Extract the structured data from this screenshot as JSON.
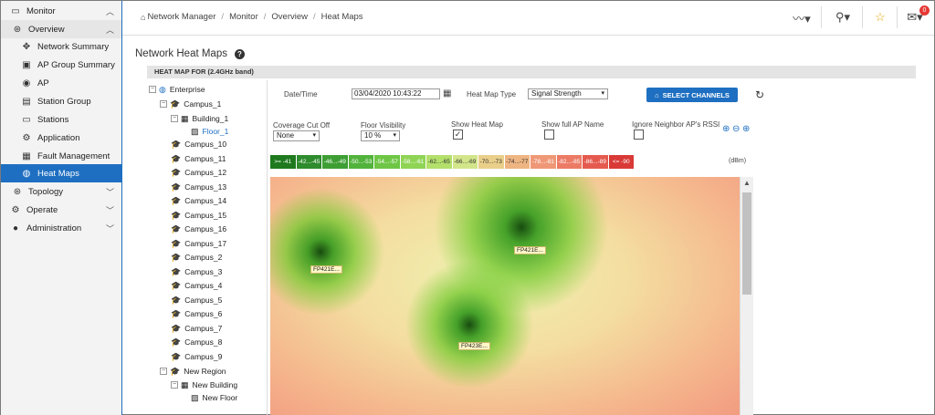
{
  "sidebar": {
    "items": [
      {
        "label": "Monitor",
        "icon": "monitor-icon",
        "level": 0,
        "expanded": true
      },
      {
        "label": "Overview",
        "icon": "overview-icon",
        "level": 1,
        "expanded": true
      },
      {
        "label": "Network Summary",
        "icon": "network-icon",
        "level": 2
      },
      {
        "label": "AP Group Summary",
        "icon": "ap-group-icon",
        "level": 2
      },
      {
        "label": "AP",
        "icon": "ap-icon",
        "level": 2
      },
      {
        "label": "Station Group",
        "icon": "station-group-icon",
        "level": 2
      },
      {
        "label": "Stations",
        "icon": "stations-icon",
        "level": 2
      },
      {
        "label": "Application",
        "icon": "application-icon",
        "level": 2
      },
      {
        "label": "Fault Management",
        "icon": "fault-icon",
        "level": 2
      },
      {
        "label": "Heat Maps",
        "icon": "globe-icon",
        "level": 2,
        "active": true
      },
      {
        "label": "Topology",
        "icon": "topology-icon",
        "level": 1
      },
      {
        "label": "Operate",
        "icon": "operate-icon",
        "level": 0
      },
      {
        "label": "Administration",
        "icon": "user-icon",
        "level": 0
      }
    ]
  },
  "breadcrumb": [
    "Network Manager",
    "Monitor",
    "Overview",
    "Heat Maps"
  ],
  "notifications_count": "0",
  "page_title": "Network Heat Maps",
  "section_title": "HEAT MAP FOR (2.4GHz band)",
  "tree": {
    "root": "Enterprise",
    "campus_1": "Campus_1",
    "building_1": "Building_1",
    "floor_1": "Floor_1",
    "campuses": [
      "Campus_10",
      "Campus_11",
      "Campus_12",
      "Campus_13",
      "Campus_14",
      "Campus_15",
      "Campus_16",
      "Campus_17",
      "Campus_2",
      "Campus_3",
      "Campus_4",
      "Campus_5",
      "Campus_6",
      "Campus_7",
      "Campus_8",
      "Campus_9"
    ],
    "new_region": "New Region",
    "new_building": "New Building",
    "new_floor": "New Floor"
  },
  "controls": {
    "datetime_label": "Date/Time",
    "datetime_value": "03/04/2020 10:43:22",
    "heatmap_type_label": "Heat Map Type",
    "heatmap_type_value": "Signal Strength",
    "select_channels": "SELECT CHANNELS",
    "coverage_label": "Coverage Cut Off",
    "coverage_value": "None",
    "floor_vis_label": "Floor Visibility",
    "floor_vis_value": "10 %",
    "show_heatmap_label": "Show Heat Map",
    "show_heatmap_checked": true,
    "show_full_ap_label": "Show full AP Name",
    "show_full_ap_checked": false,
    "ignore_neighbor_label": "Ignore Neighbor AP's RSSI",
    "ignore_neighbor_checked": false
  },
  "legend": {
    "unit": "(dBm)",
    "cells": [
      {
        "label": ">= -41",
        "color": "#1f7a1f"
      },
      {
        "label": "-42...-45",
        "color": "#2e8b2e"
      },
      {
        "label": "-46...-49",
        "color": "#3d9e34"
      },
      {
        "label": "-50...-53",
        "color": "#52b33c"
      },
      {
        "label": "-54...-57",
        "color": "#6fc646"
      },
      {
        "label": "-58...-61",
        "color": "#8fd455"
      },
      {
        "label": "-62...-65",
        "color": "#b3df6b"
      },
      {
        "label": "-66...-69",
        "color": "#d2e58a"
      },
      {
        "label": "-70...-73",
        "color": "#e9cf8a"
      },
      {
        "label": "-74...-77",
        "color": "#eeb583"
      },
      {
        "label": "-78...-81",
        "color": "#ef9877"
      },
      {
        "label": "-82...-85",
        "color": "#ec7b66"
      },
      {
        "label": "-86...-89",
        "color": "#e55a4f"
      },
      {
        "label": "<= -90",
        "color": "#d93a36"
      }
    ]
  },
  "aps": [
    "FP421E...",
    "FP421E...",
    "FP423E..."
  ]
}
